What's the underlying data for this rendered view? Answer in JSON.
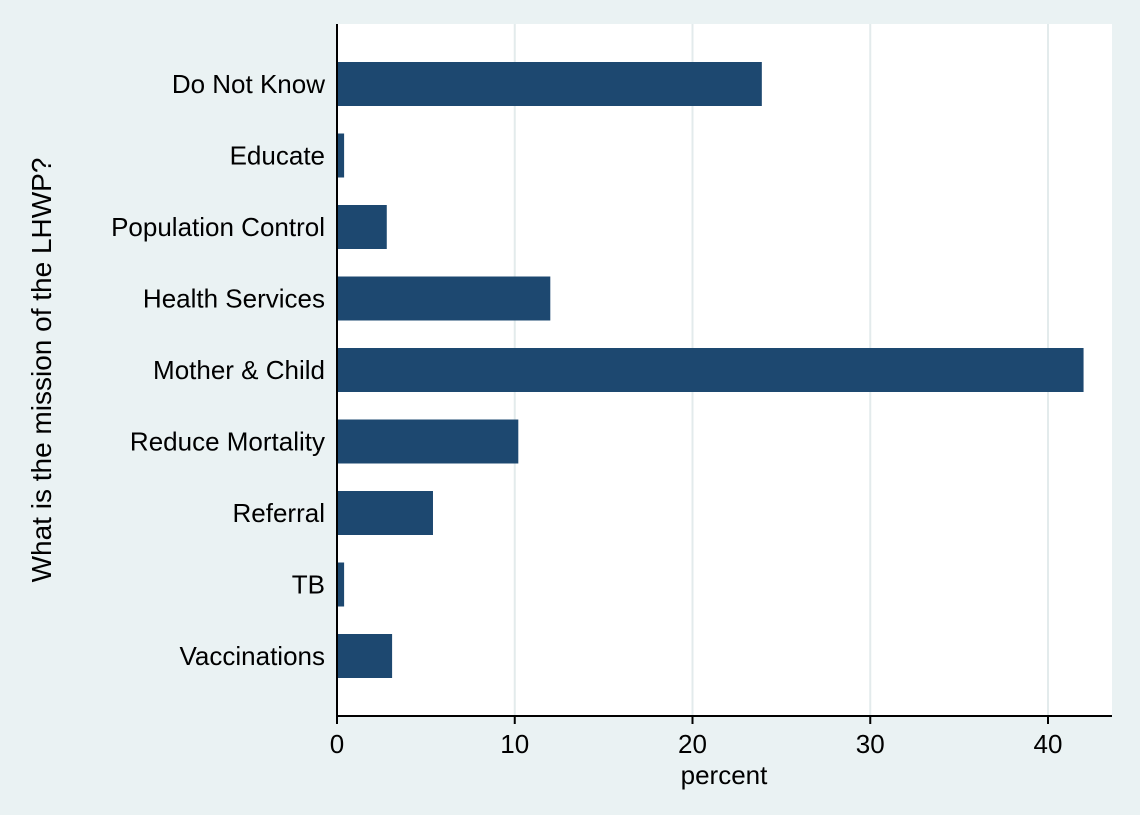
{
  "chart_data": {
    "type": "bar",
    "orientation": "horizontal",
    "categories": [
      "Do Not Know",
      "Educate",
      "Population Control",
      "Health Services",
      "Mother & Child",
      "Reduce Mortality",
      "Referral",
      "TB",
      "Vaccinations"
    ],
    "values": [
      23.9,
      0.4,
      2.8,
      12.0,
      42.0,
      10.2,
      5.4,
      0.4,
      3.1
    ],
    "xlabel": "percent",
    "ylabel": "What is the mission of the LHWP?",
    "xticks": [
      0,
      10,
      20,
      30,
      40
    ],
    "xlim": [
      0,
      43.6
    ],
    "grid": "vertical",
    "colors": {
      "bar": "#1d4870",
      "plot_background": "#ffffff",
      "page_background": "#eaf2f3",
      "gridline": "#e3ebec",
      "axis": "#000000"
    }
  }
}
